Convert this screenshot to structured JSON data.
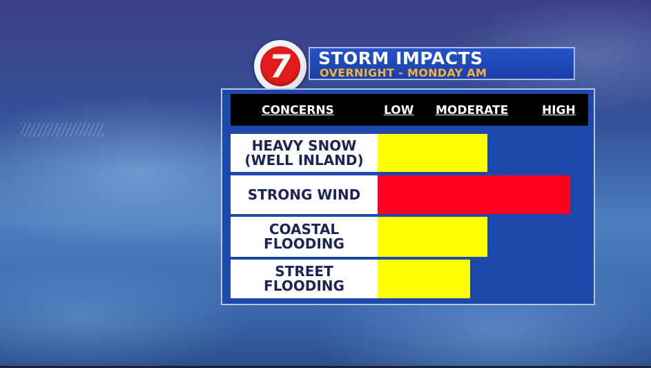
{
  "header": {
    "logo_text": "7",
    "title": "STORM IMPACTS",
    "subtitle": "OVERNIGHT - MONDAY AM"
  },
  "colors": {
    "panel": "#1d49ad",
    "title_box": "#1f4ab8",
    "subtitle": "#f3b43a",
    "low_moderate": "#ffff00",
    "high": "#ff0022",
    "logo_red": "#e31b1b"
  },
  "chart_data": {
    "type": "bar",
    "orientation": "horizontal",
    "column_headers": {
      "concerns": "CONCERNS",
      "low": "LOW",
      "moderate": "MODERATE",
      "high": "HIGH"
    },
    "scale": [
      "LOW",
      "MODERATE",
      "HIGH"
    ],
    "categories": [
      "HEAVY SNOW\n(WELL INLAND)",
      "STRONG WIND",
      "COASTAL\nFLOODING",
      "STREET\nFLOODING"
    ],
    "values": [
      0.57,
      1.0,
      0.57,
      0.48
    ],
    "bar_colors": [
      "#ffff00",
      "#ff0022",
      "#ffff00",
      "#ffff00"
    ]
  }
}
